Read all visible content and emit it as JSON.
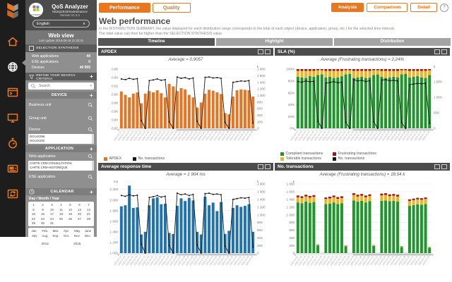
{
  "rail": {
    "icons": [
      "app-logo",
      "home",
      "web-view",
      "applications",
      "devices",
      "response-time",
      "storage",
      "transfer"
    ]
  },
  "sidebar": {
    "app_title": "QoS Analyzer",
    "app_subtitle": "N53Q2543/maintenance",
    "version": "Version V1.2.2",
    "language": "English",
    "view_title": "Web view",
    "last_update": "Last update 2016-05-18 11:33:31",
    "selection": {
      "title": "SELECTION SYNTHESIS",
      "rows": [
        {
          "label": "Web applications",
          "value": "44"
        },
        {
          "label": "ESE applications",
          "value": "0"
        },
        {
          "label": "Devices",
          "value": "40 905"
        }
      ]
    },
    "refine_label": "REFINE YOUR SEARCH CRITERIA",
    "refine_plus": "+",
    "search_placeholder": "Search",
    "device": {
      "title": "DEVICE",
      "plus": "+",
      "business_unit": "Business unit",
      "group_unit": "Group unit",
      "device_label": "Device",
      "list": [
        "DG14X296",
        "DG14X202"
      ]
    },
    "application": {
      "title": "APPLICATION",
      "plus": "+",
      "web_app_label": "Web application",
      "list": [
        "CARTE CRM-CONSULTATION",
        "CARTE CRM-HISTORIQUE"
      ],
      "ese_app_label": "ESE application"
    },
    "calendar": {
      "title": "CALENDAR",
      "plus": "+",
      "mode": "Day / Month / Year",
      "days": [
        "1",
        "2",
        "3",
        "4",
        "5",
        "6",
        "7",
        "8",
        "9",
        "10",
        "11",
        "12",
        "13",
        "14",
        "15",
        "16",
        "17",
        "18",
        "19",
        "20",
        "21",
        "22",
        "23",
        "24",
        "25",
        "26",
        "27",
        "28",
        "29",
        "30",
        "31"
      ],
      "months": [
        "Jan.",
        "Feb.",
        "Mar.",
        "Apr.",
        "May",
        "June",
        "July",
        "Aug.",
        "Sep.",
        "Oct.",
        "Nov.",
        "Dec."
      ],
      "years": [
        "2014",
        "2015"
      ]
    }
  },
  "main": {
    "mode_tabs": [
      {
        "label": "Performance"
      },
      {
        "label": "Quality"
      }
    ],
    "actions": [
      {
        "label": "Analysis"
      },
      {
        "label": "Comparison"
      },
      {
        "label": "Detail"
      }
    ],
    "help": "?",
    "page_title": "Web performance",
    "description_line1": "In the DISTRIBUTION SUMMARY, the value displayed for each distribution range corresponds to the total of each object (device, application, group, etc.) for the selected time interval.",
    "description_line2": "The total value can then be higher than the SELECTION SYNTHESIS value.",
    "view_tabs": [
      {
        "label": "Timeline"
      },
      {
        "label": "Highlight"
      },
      {
        "label": "Distribution"
      }
    ]
  },
  "colors": {
    "accent": "#e87722",
    "bar_orange": "#e87420",
    "bar_blue": "#1f72ad",
    "green": "#1f962b",
    "yellow": "#f0b41e",
    "red": "#a31515",
    "line": "#1a1a1a"
  },
  "chart_data": [
    {
      "type": "bar",
      "panel_title": "APDEX",
      "title": "Average = 0,9057",
      "left_unit": "",
      "right_unit": "k",
      "left_ticks": [
        "0,96",
        "0,94",
        "0,92",
        "0,90",
        "0,88",
        "0,86",
        "0,84",
        "0,82"
      ],
      "left_tick_vals": [
        0.96,
        0.94,
        0.92,
        0.9,
        0.88,
        0.86,
        0.84,
        0.82
      ],
      "left_min": 0.82,
      "left_max": 0.96,
      "right_ticks": [
        "1 800",
        "1 600",
        "1 400",
        "1 200",
        "1 000",
        "800",
        "600",
        "400",
        "200",
        "0"
      ],
      "right_tick_vals": [
        1800,
        1600,
        1400,
        1200,
        1000,
        800,
        600,
        400,
        200,
        0
      ],
      "right_min": 0,
      "right_max": 1800,
      "bar_color": "#e87420",
      "categories": [
        "2015-10-12",
        "2015-10-13",
        "2015-10-14",
        "2015-10-15",
        "2015-10-16",
        "2015-10-17",
        "2015-10-18",
        "2015-10-19",
        "2015-10-20",
        "2015-10-21",
        "2015-10-22",
        "2015-10-23",
        "2015-10-24",
        "2015-10-25",
        "2015-10-26",
        "2015-10-27",
        "2015-10-28",
        "2015-10-29",
        "2015-10-30",
        "2015-10-31",
        "2015-11-01",
        "2015-11-02",
        "2015-11-03",
        "2015-11-04",
        "2015-11-05",
        "2015-11-06",
        "2015-11-07",
        "2015-11-08",
        "2015-11-09",
        "2015-11-10",
        "2015-11-11",
        "2015-11-12",
        "2015-11-13",
        "2015-11-14"
      ],
      "values": [
        0.907,
        0.899,
        0.893,
        0.902,
        0.905,
        0.879,
        0.902,
        0.908,
        0.905,
        0.91,
        0.903,
        0.893,
        0.925,
        0.919,
        0.908,
        0.915,
        0.912,
        0.899,
        0.893,
        0.869,
        0.881,
        0.902,
        0.911,
        0.909,
        0.905,
        0.901,
        0.856,
        0.853,
        0.895,
        0.91,
        0.912,
        0.911,
        0.91,
        0.895
      ],
      "line": {
        "name": "No. transactions",
        "values": [
          1500,
          1480,
          1520,
          1490,
          1510,
          230,
          0,
          1450,
          1470,
          1500,
          1460,
          1480,
          200,
          0,
          1560,
          1520,
          1540,
          1500,
          1530,
          210,
          0,
          1550,
          1560,
          1530,
          1540,
          1520,
          180,
          0,
          1400,
          1420,
          1440,
          1430,
          1450,
          160
        ]
      },
      "legend": [
        {
          "label": "APDEX",
          "color": "#e87420"
        },
        {
          "label": "No. transactions",
          "color": "#1a1a1a"
        }
      ]
    },
    {
      "type": "stacked-bar",
      "panel_title": "SLA (%)",
      "title": "Average (Frustrating transactions) = 2,24%",
      "right_unit": "k",
      "left_ticks": [
        "100%",
        "80%",
        "60%",
        "40%",
        "20%",
        "0%"
      ],
      "left_tick_vals": [
        100,
        80,
        60,
        40,
        20,
        0
      ],
      "left_min": 0,
      "left_max": 100,
      "right_ticks": [
        "1 500",
        "1 000",
        "500",
        "0"
      ],
      "right_tick_vals": [
        1500,
        1000,
        500,
        0
      ],
      "right_min": 0,
      "right_max": 1900,
      "categories": [
        "2015-10-12",
        "2015-10-13",
        "2015-10-14",
        "2015-10-15",
        "2015-10-16",
        "2015-10-17",
        "2015-10-18",
        "2015-10-19",
        "2015-10-20",
        "2015-10-21",
        "2015-10-22",
        "2015-10-23",
        "2015-10-24",
        "2015-10-25",
        "2015-10-26",
        "2015-10-27",
        "2015-10-28",
        "2015-10-29",
        "2015-10-30",
        "2015-10-31",
        "2015-11-01",
        "2015-11-02",
        "2015-11-03",
        "2015-11-04",
        "2015-11-05",
        "2015-11-06",
        "2015-11-07",
        "2015-11-08",
        "2015-11-09",
        "2015-11-10",
        "2015-11-11",
        "2015-11-12",
        "2015-11-13",
        "2015-11-14"
      ],
      "stack_series": [
        {
          "name": "Compliant transactions",
          "color": "#1f962b",
          "values": [
            87,
            86,
            85,
            88,
            87,
            90,
            91,
            86,
            87,
            85,
            86,
            88,
            91,
            92,
            85,
            86,
            87,
            85,
            86,
            90,
            91,
            87,
            85,
            86,
            87,
            86,
            91,
            92,
            86,
            87,
            88,
            86,
            85,
            90
          ]
        },
        {
          "name": "Tolerable transactions",
          "color": "#f0b41e",
          "values": [
            10,
            11,
            12,
            9,
            10,
            8,
            7,
            11,
            10,
            12,
            11,
            9,
            7,
            6,
            12,
            11,
            10,
            12,
            11,
            8,
            7,
            10,
            12,
            11,
            10,
            11,
            7,
            6,
            11,
            10,
            9,
            11,
            12,
            8
          ]
        },
        {
          "name": "Frustrating transactions",
          "color": "#a31515",
          "values": [
            3,
            3,
            3,
            3,
            3,
            2,
            2,
            3,
            3,
            3,
            3,
            3,
            2,
            2,
            3,
            3,
            3,
            3,
            3,
            2,
            2,
            3,
            3,
            3,
            3,
            3,
            2,
            2,
            3,
            3,
            3,
            3,
            3,
            2
          ]
        }
      ],
      "line": {
        "name": "No. transactions",
        "values": [
          1500,
          1480,
          1520,
          1490,
          1510,
          230,
          0,
          1450,
          1470,
          1500,
          1460,
          1480,
          200,
          0,
          1560,
          1520,
          1540,
          1500,
          1530,
          210,
          0,
          1550,
          1560,
          1530,
          1540,
          1520,
          180,
          0,
          1400,
          1420,
          1440,
          1430,
          1450,
          160
        ]
      },
      "legend": [
        {
          "label": "Compliant transactions",
          "color": "#1f962b"
        },
        {
          "label": "Frustrating transactions",
          "color": "#a31515"
        },
        {
          "label": "Tolerable transactions",
          "color": "#f0b41e"
        },
        {
          "label": "No. transactions",
          "color": "#1a1a1a"
        }
      ]
    },
    {
      "type": "bar",
      "panel_title": "Average response time",
      "title": "Average = 1 904 ms",
      "left_unit": "ms",
      "right_unit": "k",
      "left_ticks": [
        "2 200",
        "2 000",
        "1 800",
        "1 600",
        "1 400",
        "1 200",
        "1 000"
      ],
      "left_tick_vals": [
        2200,
        2000,
        1800,
        1600,
        1400,
        1200,
        1000
      ],
      "left_min": 1000,
      "left_max": 2300,
      "right_ticks": [
        "1 800",
        "1 600",
        "1 400",
        "1 200",
        "1 000",
        "800",
        "600",
        "400",
        "200",
        "0"
      ],
      "right_tick_vals": [
        1800,
        1600,
        1400,
        1200,
        1000,
        800,
        600,
        400,
        200,
        0
      ],
      "right_min": 0,
      "right_max": 1800,
      "bar_color": "#1f72ad",
      "categories": [
        "2015-10-12",
        "2015-10-13",
        "2015-10-14",
        "2015-10-15",
        "2015-10-16",
        "2015-10-17",
        "2015-10-18",
        "2015-10-19",
        "2015-10-20",
        "2015-10-21",
        "2015-10-22",
        "2015-10-23",
        "2015-10-24",
        "2015-10-25",
        "2015-10-26",
        "2015-10-27",
        "2015-10-28",
        "2015-10-29",
        "2015-10-30",
        "2015-10-31",
        "2015-11-01",
        "2015-11-02",
        "2015-11-03",
        "2015-11-04",
        "2015-11-05",
        "2015-11-06",
        "2015-11-07",
        "2015-11-08",
        "2015-11-09",
        "2015-11-10",
        "2015-11-11",
        "2015-11-12",
        "2015-11-13",
        "2015-11-14"
      ],
      "values": [
        1880,
        1900,
        2270,
        1850,
        1860,
        1350,
        1400,
        1900,
        2030,
        2050,
        1920,
        1930,
        1380,
        1360,
        1890,
        2030,
        1980,
        2040,
        1990,
        1400,
        1350,
        2060,
        1900,
        1950,
        1790,
        1960,
        1360,
        1420,
        1850,
        1900,
        1870,
        1890,
        1920,
        1400
      ],
      "line": {
        "name": "No. transactions",
        "values": [
          1500,
          1480,
          1520,
          1490,
          1510,
          230,
          0,
          1450,
          1470,
          1500,
          1460,
          1480,
          200,
          0,
          1560,
          1520,
          1540,
          1500,
          1530,
          210,
          0,
          1550,
          1560,
          1530,
          1540,
          1520,
          180,
          0,
          1400,
          1420,
          1440,
          1430,
          1450,
          160
        ]
      }
    },
    {
      "type": "stacked-bar",
      "panel_title": "No. transactions",
      "title": "Average (Frustrating transactions) = 18,54 k",
      "left_unit": "k",
      "left_ticks": [
        "1 800",
        "1 600",
        "1 400",
        "1 200",
        "1 000",
        "800",
        "600",
        "400",
        "200",
        "0"
      ],
      "left_tick_vals": [
        1800,
        1600,
        1400,
        1200,
        1000,
        800,
        600,
        400,
        200,
        0
      ],
      "left_min": 0,
      "left_max": 1800,
      "categories": [
        "2015-10-12",
        "2015-10-13",
        "2015-10-14",
        "2015-10-15",
        "2015-10-16",
        "2015-10-17",
        "2015-10-18",
        "2015-10-19",
        "2015-10-20",
        "2015-10-21",
        "2015-10-22",
        "2015-10-23",
        "2015-10-24",
        "2015-10-25",
        "2015-10-26",
        "2015-10-27",
        "2015-10-28",
        "2015-10-29",
        "2015-10-30",
        "2015-10-31",
        "2015-11-01",
        "2015-11-02",
        "2015-11-03",
        "2015-11-04",
        "2015-11-05",
        "2015-11-06",
        "2015-11-07",
        "2015-11-08",
        "2015-11-09",
        "2015-11-10",
        "2015-11-11",
        "2015-11-12",
        "2015-11-13",
        "2015-11-14"
      ],
      "stack_series": [
        {
          "name": "Compliant transactions",
          "color": "#1f962b",
          "values": [
            1320,
            1300,
            1340,
            1310,
            1330,
            200,
            0,
            1280,
            1290,
            1320,
            1280,
            1300,
            175,
            0,
            1370,
            1340,
            1360,
            1320,
            1350,
            185,
            0,
            1360,
            1370,
            1350,
            1360,
            1340,
            160,
            0,
            1230,
            1250,
            1270,
            1260,
            1280,
            140
          ]
        },
        {
          "name": "Tolerable transactions",
          "color": "#f0b41e",
          "values": [
            135,
            135,
            135,
            135,
            135,
            25,
            0,
            130,
            135,
            135,
            135,
            135,
            20,
            0,
            145,
            135,
            135,
            135,
            135,
            20,
            0,
            145,
            145,
            135,
            135,
            135,
            15,
            0,
            130,
            130,
            130,
            130,
            130,
            15
          ]
        },
        {
          "name": "Frustrating transactions",
          "color": "#a31515",
          "values": [
            45,
            45,
            45,
            45,
            45,
            5,
            0,
            40,
            45,
            45,
            45,
            45,
            5,
            0,
            45,
            45,
            45,
            45,
            45,
            5,
            0,
            45,
            45,
            45,
            45,
            45,
            5,
            0,
            40,
            40,
            40,
            40,
            40,
            5
          ]
        }
      ]
    }
  ]
}
